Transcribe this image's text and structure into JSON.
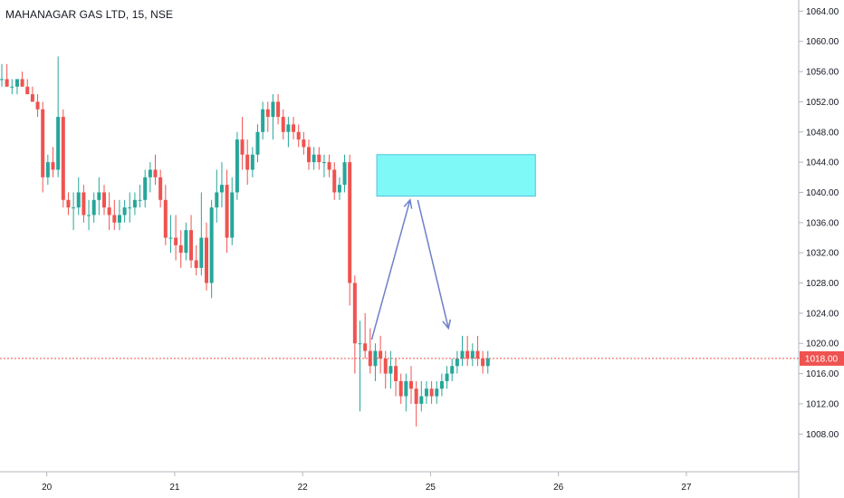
{
  "header": {
    "title": "MAHANAGAR GAS LTD, 15, NSE"
  },
  "price_label": {
    "value": "1018.00"
  },
  "colors": {
    "up": "#26a69a",
    "down": "#ef5350",
    "zone_fill": "#7ff8f8",
    "zone_border": "#4fc3d9",
    "arrow": "#6d80c8",
    "price_line": "#ef5350"
  },
  "chart_data": {
    "type": "candlestick",
    "title": "MAHANAGAR GAS LTD, 15, NSE",
    "ylim": [
      1003,
      1065
    ],
    "y_ticks": [
      "1064.00",
      "1060.00",
      "1056.00",
      "1052.00",
      "1048.00",
      "1044.00",
      "1040.00",
      "1036.00",
      "1032.00",
      "1028.00",
      "1024.00",
      "1020.00",
      "1016.00",
      "1012.00",
      "1008.00"
    ],
    "x_ticks": [
      {
        "label": "20",
        "x": 9.5
      },
      {
        "label": "21",
        "x": 34.5
      },
      {
        "label": "22",
        "x": 59.5
      },
      {
        "label": "25",
        "x": 84.5
      },
      {
        "label": "26",
        "x": 109.5
      },
      {
        "label": "27",
        "x": 134.5
      }
    ],
    "last_price": 1018.0,
    "candles": [
      [
        1055,
        1057,
        1054,
        1055
      ],
      [
        1055,
        1057,
        1054,
        1054
      ],
      [
        1054,
        1055,
        1053,
        1054
      ],
      [
        1054,
        1055,
        1053,
        1055
      ],
      [
        1055,
        1056,
        1054,
        1054
      ],
      [
        1054,
        1055,
        1053,
        1053
      ],
      [
        1053,
        1054,
        1052,
        1052
      ],
      [
        1052,
        1053,
        1050,
        1051
      ],
      [
        1051,
        1052,
        1040,
        1042
      ],
      [
        1042,
        1045,
        1041,
        1044
      ],
      [
        1044,
        1046,
        1042,
        1043
      ],
      [
        1043,
        1058,
        1042,
        1050
      ],
      [
        1050,
        1051,
        1038,
        1039
      ],
      [
        1039,
        1040,
        1037,
        1038
      ],
      [
        1038,
        1040,
        1035,
        1038
      ],
      [
        1038,
        1042,
        1037,
        1040
      ],
      [
        1040,
        1041,
        1036,
        1037
      ],
      [
        1037,
        1039,
        1035,
        1037
      ],
      [
        1037,
        1040,
        1036,
        1039
      ],
      [
        1039,
        1042,
        1037,
        1040
      ],
      [
        1040,
        1041,
        1037,
        1038
      ],
      [
        1038,
        1040,
        1035,
        1037
      ],
      [
        1037,
        1039,
        1035,
        1036
      ],
      [
        1036,
        1039,
        1035,
        1037
      ],
      [
        1037,
        1039,
        1036,
        1038
      ],
      [
        1038,
        1040,
        1036,
        1038
      ],
      [
        1038,
        1040,
        1037,
        1039
      ],
      [
        1039,
        1041,
        1038,
        1039
      ],
      [
        1039,
        1043,
        1038,
        1042
      ],
      [
        1042,
        1044,
        1040,
        1043
      ],
      [
        1043,
        1045,
        1041,
        1042
      ],
      [
        1042,
        1043,
        1038,
        1039
      ],
      [
        1039,
        1041,
        1033,
        1034
      ],
      [
        1034,
        1037,
        1032,
        1034
      ],
      [
        1034,
        1037,
        1031,
        1033
      ],
      [
        1033,
        1035,
        1030,
        1032
      ],
      [
        1032,
        1036,
        1031,
        1035
      ],
      [
        1035,
        1037,
        1030,
        1031
      ],
      [
        1031,
        1033,
        1029,
        1030
      ],
      [
        1030,
        1040,
        1029,
        1034
      ],
      [
        1034,
        1036,
        1027,
        1028
      ],
      [
        1028,
        1039,
        1026,
        1038
      ],
      [
        1038,
        1043,
        1036,
        1040
      ],
      [
        1040,
        1044,
        1038,
        1041
      ],
      [
        1041,
        1043,
        1032,
        1034
      ],
      [
        1034,
        1042,
        1033,
        1040
      ],
      [
        1040,
        1048,
        1039,
        1047
      ],
      [
        1047,
        1050,
        1043,
        1045
      ],
      [
        1045,
        1047,
        1041,
        1043
      ],
      [
        1043,
        1046,
        1042,
        1045
      ],
      [
        1045,
        1049,
        1044,
        1048
      ],
      [
        1048,
        1052,
        1047,
        1051
      ],
      [
        1051,
        1052,
        1048,
        1050
      ],
      [
        1050,
        1053,
        1047,
        1052
      ],
      [
        1052,
        1053,
        1049,
        1050
      ],
      [
        1050,
        1051,
        1047,
        1048
      ],
      [
        1048,
        1050,
        1046,
        1049
      ],
      [
        1049,
        1050,
        1047,
        1048
      ],
      [
        1048,
        1049,
        1046,
        1047
      ],
      [
        1047,
        1048,
        1045,
        1046
      ],
      [
        1046,
        1047,
        1043,
        1044
      ],
      [
        1044,
        1046,
        1043,
        1045
      ],
      [
        1045,
        1046,
        1043,
        1044
      ],
      [
        1044,
        1045,
        1042,
        1044
      ],
      [
        1044,
        1045,
        1042,
        1043
      ],
      [
        1043,
        1044,
        1039,
        1040
      ],
      [
        1040,
        1042,
        1039,
        1041
      ],
      [
        1041,
        1045,
        1040,
        1044
      ],
      [
        1044,
        1045,
        1025,
        1028
      ],
      [
        1028,
        1029,
        1016,
        1020
      ],
      [
        1020,
        1023,
        1011,
        1020
      ],
      [
        1020,
        1024,
        1018,
        1019
      ],
      [
        1019,
        1022,
        1016,
        1017
      ],
      [
        1017,
        1020,
        1015,
        1019
      ],
      [
        1019,
        1021,
        1016,
        1018
      ],
      [
        1018,
        1019,
        1014,
        1016
      ],
      [
        1016,
        1019,
        1014,
        1017
      ],
      [
        1017,
        1018,
        1013,
        1015
      ],
      [
        1015,
        1016,
        1012,
        1013
      ],
      [
        1013,
        1016,
        1011,
        1015
      ],
      [
        1015,
        1017,
        1012,
        1014
      ],
      [
        1014,
        1015,
        1009,
        1012
      ],
      [
        1012,
        1015,
        1011,
        1013
      ],
      [
        1013,
        1015,
        1012,
        1014
      ],
      [
        1014,
        1015,
        1012,
        1013
      ],
      [
        1013,
        1015,
        1012,
        1014
      ],
      [
        1014,
        1016,
        1013,
        1015
      ],
      [
        1015,
        1017,
        1014,
        1016
      ],
      [
        1016,
        1018,
        1015,
        1017
      ],
      [
        1017,
        1019,
        1016,
        1018
      ],
      [
        1018,
        1021,
        1017,
        1019
      ],
      [
        1019,
        1021,
        1017,
        1018
      ],
      [
        1018,
        1020,
        1017,
        1019
      ],
      [
        1019,
        1021,
        1017,
        1018
      ],
      [
        1018,
        1019,
        1016,
        1017
      ],
      [
        1017,
        1019,
        1016,
        1018
      ]
    ],
    "annotations": {
      "zone": {
        "x0": 74.0,
        "x1": 105.0,
        "y_top": 1045.0,
        "y_bottom": 1039.5
      },
      "arrow_up": {
        "x0": 73.0,
        "y0": 1020.5,
        "x1": 80.5,
        "y1": 1039.0
      },
      "arrow_down": {
        "x0": 82.0,
        "y0": 1039.0,
        "x1": 88.0,
        "y1": 1022.0
      }
    }
  }
}
